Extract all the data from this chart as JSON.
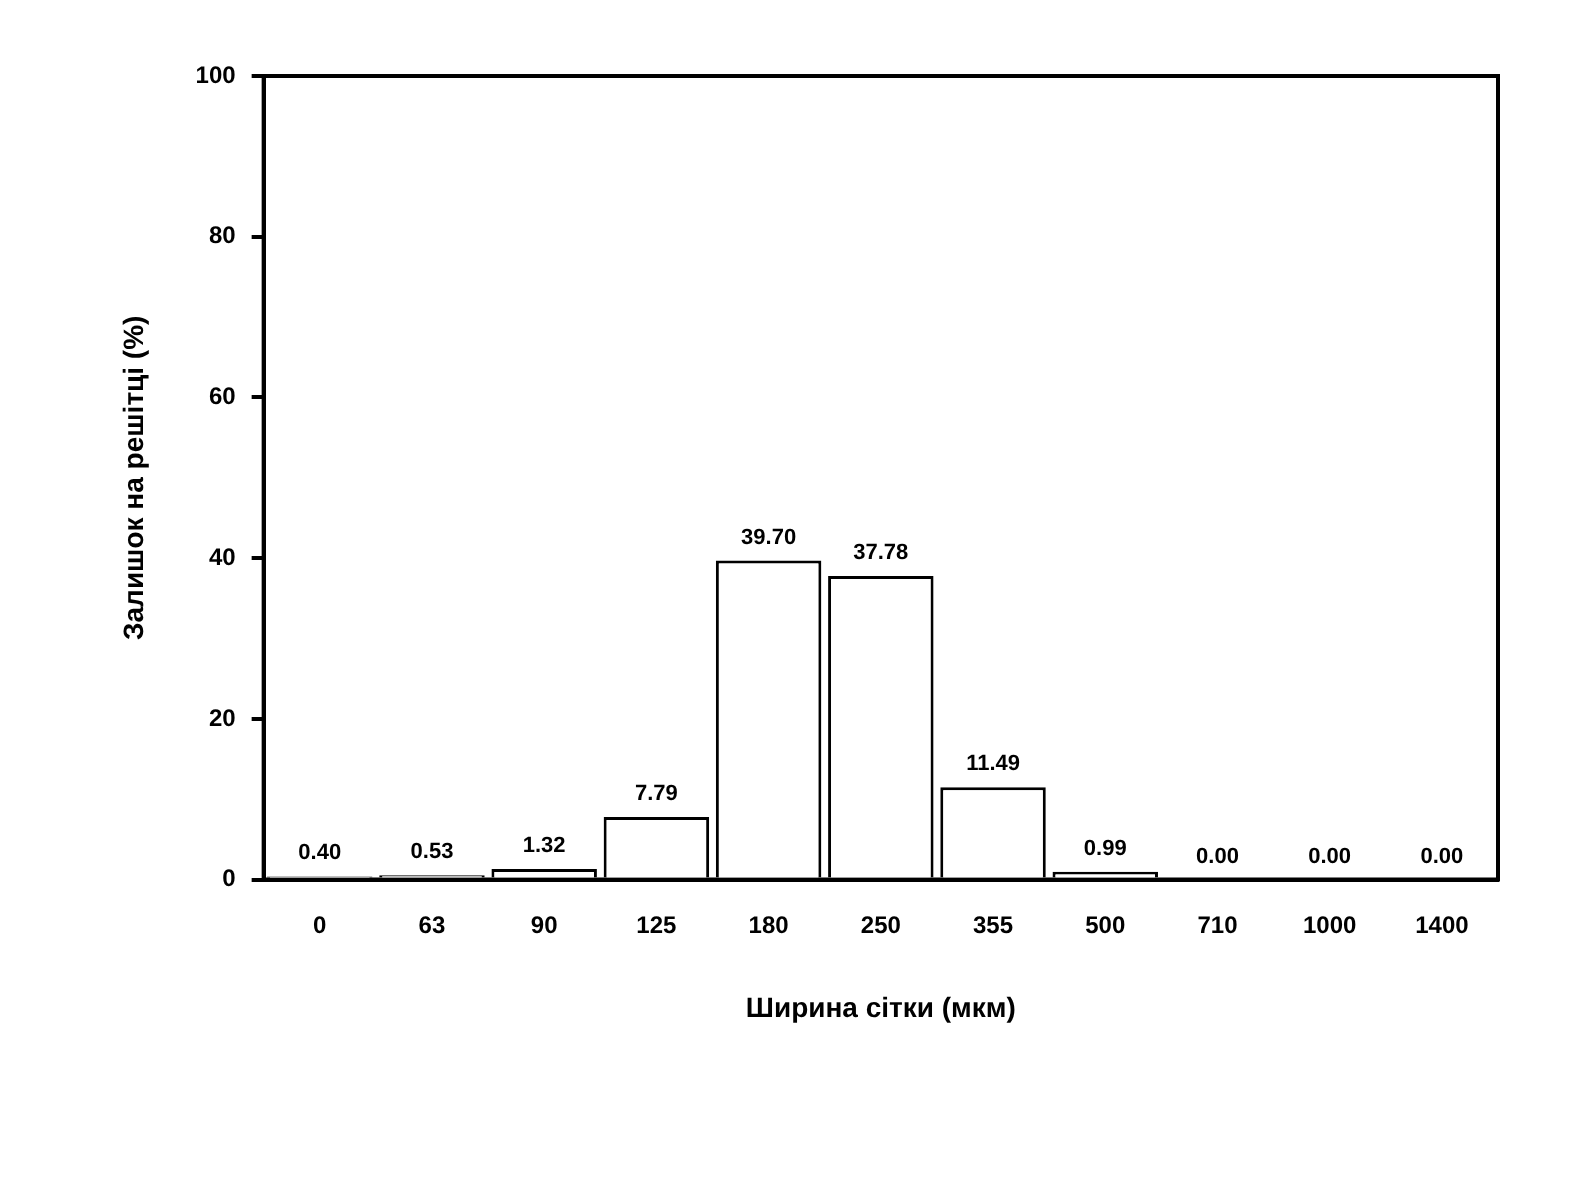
{
  "chart_data": {
    "type": "bar",
    "xlabel": "Ширина сітки (мкм)",
    "ylabel": "Залишок на решітці (%)",
    "categories": [
      "0",
      "63",
      "90",
      "125",
      "180",
      "250",
      "355",
      "500",
      "710",
      "1000",
      "1400"
    ],
    "values": [
      0.4,
      0.53,
      1.32,
      7.79,
      39.7,
      37.78,
      11.49,
      0.99,
      0.0,
      0.0,
      0.0
    ],
    "value_labels": [
      "0.40",
      "0.53",
      "1.32",
      "7.79",
      "39.70",
      "37.78",
      "11.49",
      "0.99",
      "0.00",
      "0.00",
      "0.00"
    ],
    "color": "#ffffff",
    "ylim": [
      0,
      100
    ],
    "yticks": [
      0,
      20,
      40,
      60,
      80,
      100
    ],
    "grid": false,
    "legend": false
  }
}
